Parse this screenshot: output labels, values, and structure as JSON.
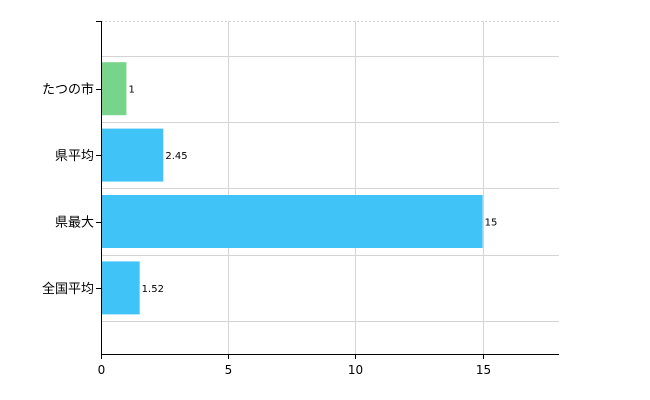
{
  "chart_data": {
    "type": "bar",
    "orientation": "horizontal",
    "categories": [
      "たつの市",
      "県平均",
      "県最大",
      "全国平均"
    ],
    "values": [
      1,
      2.45,
      15,
      1.52
    ],
    "data_labels": [
      "1",
      "2.45",
      "15",
      "1.52"
    ],
    "bar_colors": [
      "#77d48a",
      "#40c4f7",
      "#40c4f7",
      "#40c4f7"
    ],
    "xlim": [
      0,
      18
    ],
    "x_ticks": [
      0,
      5,
      10,
      15
    ],
    "x_tick_labels": [
      "0",
      "5",
      "10",
      "15"
    ],
    "grid": true,
    "legend": "none"
  },
  "colors": {
    "grid": "#d4d4d4",
    "axis": "#000000",
    "highlight_bar": "#77d48a",
    "bar": "#40c4f7"
  }
}
